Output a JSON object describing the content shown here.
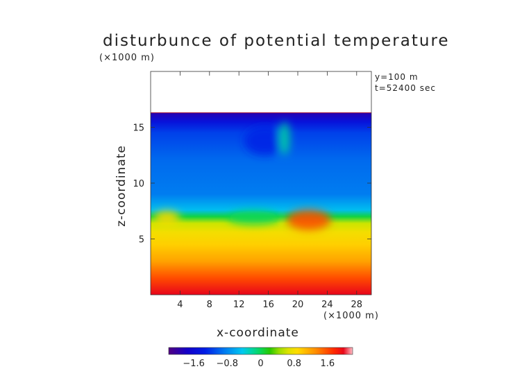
{
  "chart_data": {
    "type": "heatmap",
    "title": "disturbunce of potential temperature",
    "xlabel": "x-coordinate",
    "ylabel": "z-coordinate",
    "x_unit": "(×1000 m)",
    "y_unit": "(×1000 m)",
    "annotations": [
      "y=100 m",
      "t=52400 sec"
    ],
    "xlim": [
      0,
      30
    ],
    "ylim": [
      0,
      20
    ],
    "x_ticks": [
      4,
      8,
      12,
      16,
      20,
      24,
      28
    ],
    "y_ticks": [
      5,
      10,
      15
    ],
    "colorbar": {
      "ticks": [
        -1.6,
        -0.8,
        0,
        0.8,
        1.6
      ],
      "tick_labels": [
        "−1.6",
        "−0.8",
        "0",
        "0.8",
        "1.6"
      ],
      "range": [
        -2.2,
        2.2
      ]
    },
    "data_top": 16.3,
    "bands": [
      {
        "z": 0,
        "value": 2.0
      },
      {
        "z": 1.5,
        "value": 1.6
      },
      {
        "z": 3.0,
        "value": 1.2
      },
      {
        "z": 4.5,
        "value": 0.95
      },
      {
        "z": 5.6,
        "value": 0.8
      },
      {
        "z": 6.4,
        "value": 0.55
      },
      {
        "z": 7.0,
        "value": 0.05
      },
      {
        "z": 7.6,
        "value": -0.5
      },
      {
        "z": 9.0,
        "value": -0.85
      },
      {
        "z": 12.0,
        "value": -0.95
      },
      {
        "z": 14.5,
        "value": -1.15
      },
      {
        "z": 15.5,
        "value": -1.5
      },
      {
        "z": 16.3,
        "value": -1.9
      }
    ],
    "anomalies": [
      {
        "x": 2.2,
        "z": 6.9,
        "rx": 1.8,
        "rz": 0.6,
        "value": 0.9
      },
      {
        "x": 15.5,
        "z": 13.8,
        "rx": 2.8,
        "rz": 1.3,
        "value": -1.3
      },
      {
        "x": 21.5,
        "z": 6.7,
        "rx": 3.0,
        "rz": 0.9,
        "value": 1.6
      },
      {
        "x": 14.0,
        "z": 6.9,
        "rx": 3.5,
        "rz": 0.6,
        "value": 0.0
      },
      {
        "x": 18.2,
        "z": 14.0,
        "rx": 0.7,
        "rz": 1.5,
        "value": -0.2
      }
    ]
  }
}
